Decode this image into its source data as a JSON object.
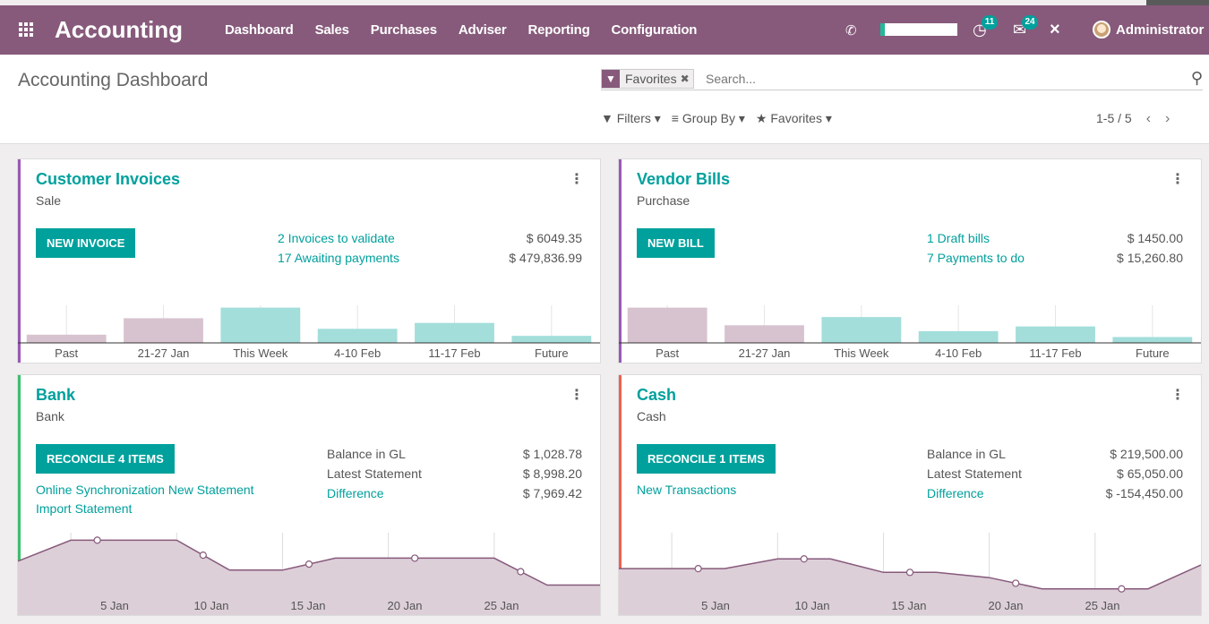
{
  "navbar": {
    "brand": "Accounting",
    "menu": [
      "Dashboard",
      "Sales",
      "Purchases",
      "Adviser",
      "Reporting",
      "Configuration"
    ],
    "activity_count": "11",
    "messages_count": "24",
    "user": "Administrator"
  },
  "control": {
    "title": "Accounting Dashboard",
    "facet": "Favorites",
    "search_placeholder": "Search...",
    "filters": "Filters",
    "group_by": "Group By",
    "favorites": "Favorites",
    "pager": "1-5 / 5"
  },
  "cards": {
    "customer_invoices": {
      "title": "Customer Invoices",
      "subtitle": "Sale",
      "button": "NEW INVOICE",
      "link1": "2 Invoices to validate",
      "link2": "17 Awaiting payments",
      "amount1": "$ 6049.35",
      "amount2": "$ 479,836.99",
      "chart_data": {
        "type": "bar",
        "categories": [
          "Past",
          "21-27 Jan",
          "This Week",
          "4-10 Feb",
          "11-17 Feb",
          "Future"
        ],
        "values": [
          7,
          21,
          30,
          12,
          17,
          6
        ],
        "colors": [
          "#d7c3cf",
          "#d7c3cf",
          "#a4dedb",
          "#a4dedb",
          "#a4dedb",
          "#a4dedb"
        ]
      }
    },
    "vendor_bills": {
      "title": "Vendor Bills",
      "subtitle": "Purchase",
      "button": "NEW BILL",
      "link1": "1 Draft bills",
      "link2": "7 Payments to do",
      "amount1": "$ 1450.00",
      "amount2": "$ 15,260.80",
      "chart_data": {
        "type": "bar",
        "categories": [
          "Past",
          "21-27 Jan",
          "This Week",
          "4-10 Feb",
          "11-17 Feb",
          "Future"
        ],
        "values": [
          30,
          15,
          22,
          10,
          14,
          5
        ],
        "colors": [
          "#d7c3cf",
          "#d7c3cf",
          "#a4dedb",
          "#a4dedb",
          "#a4dedb",
          "#a4dedb"
        ]
      }
    },
    "bank": {
      "title": "Bank",
      "subtitle": "Bank",
      "button": "RECONCILE 4 ITEMS",
      "link1": "Online Synchronization New Statement",
      "link2": "Import Statement",
      "balance_label": "Balance in GL",
      "statement_label": "Latest Statement",
      "difference_label": "Difference",
      "balance": "$ 1,028.78",
      "statement": "$ 8,998.20",
      "difference": "$ 7,969.42",
      "chart_data": {
        "type": "area",
        "x": [
          0,
          1,
          2,
          3,
          4,
          5,
          6,
          7,
          8,
          9,
          10,
          11
        ],
        "values": [
          72,
          100,
          100,
          100,
          60,
          60,
          76,
          76,
          76,
          76,
          40,
          40
        ],
        "tick_labels": [
          "5 Jan",
          "10 Jan",
          "15 Jan",
          "20 Jan",
          "25 Jan"
        ]
      }
    },
    "cash": {
      "title": "Cash",
      "subtitle": "Cash",
      "button": "RECONCILE 1 ITEMS",
      "link1": "New Transactions",
      "balance_label": "Balance in GL",
      "statement_label": "Latest Statement",
      "difference_label": "Difference",
      "balance": "$ 219,500.00",
      "statement": "$ 65,050.00",
      "difference": "$ -154,450.00",
      "chart_data": {
        "type": "area",
        "x": [
          0,
          1,
          2,
          3,
          4,
          5,
          6,
          7,
          8,
          9,
          10,
          11
        ],
        "values": [
          62,
          62,
          62,
          75,
          75,
          57,
          57,
          50,
          35,
          35,
          35,
          67
        ],
        "tick_labels": [
          "5 Jan",
          "10 Jan",
          "15 Jan",
          "20 Jan",
          "25 Jan"
        ]
      }
    }
  }
}
